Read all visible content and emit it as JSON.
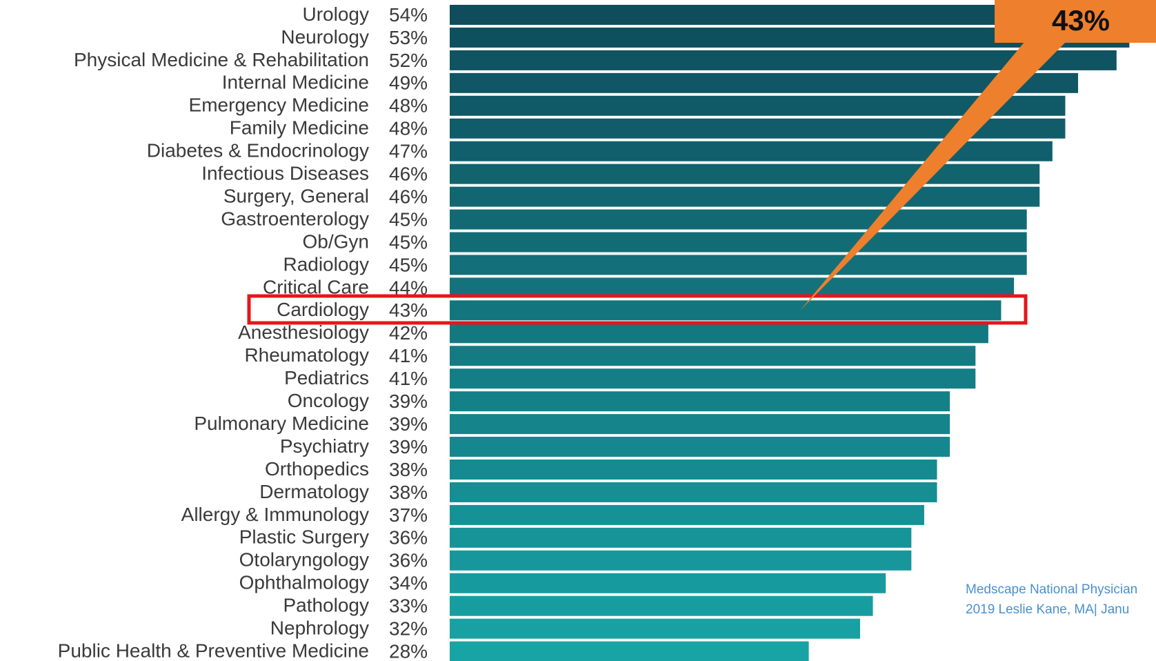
{
  "chart_data": {
    "type": "barh",
    "categories": [
      "Urology",
      "Neurology",
      "Physical Medicine & Rehabilitation",
      "Internal Medicine",
      "Emergency Medicine",
      "Family Medicine",
      "Diabetes & Endocrinology",
      "Infectious Diseases",
      "Surgery, General",
      "Gastroenterology",
      "Ob/Gyn",
      "Radiology",
      "Critical Care",
      "Cardiology",
      "Anesthesiology",
      "Rheumatology",
      "Pediatrics",
      "Oncology",
      "Pulmonary Medicine",
      "Psychiatry",
      "Orthopedics",
      "Dermatology",
      "Allergy & Immunology",
      "Plastic Surgery",
      "Otolaryngology",
      "Ophthalmology",
      "Pathology",
      "Nephrology",
      "Public Health & Preventive Medicine"
    ],
    "values": [
      54,
      53,
      52,
      49,
      48,
      48,
      47,
      46,
      46,
      45,
      45,
      45,
      44,
      43,
      42,
      41,
      41,
      39,
      39,
      39,
      38,
      38,
      37,
      36,
      36,
      34,
      33,
      32,
      28
    ],
    "value_labels": [
      "54%",
      "53%",
      "52%",
      "49%",
      "48%",
      "48%",
      "47%",
      "46%",
      "46%",
      "45%",
      "45%",
      "45%",
      "44%",
      "43%",
      "42%",
      "41%",
      "41%",
      "39%",
      "39%",
      "39%",
      "38%",
      "38%",
      "37%",
      "36%",
      "36%",
      "34%",
      "33%",
      "32%",
      "28%"
    ],
    "colors": [
      "#0f4d5c",
      "#18a3a5"
    ],
    "annotation": "43%",
    "source": [
      "Medscape National Physician",
      "2019   Leslie Kane, MA| Janu"
    ]
  }
}
